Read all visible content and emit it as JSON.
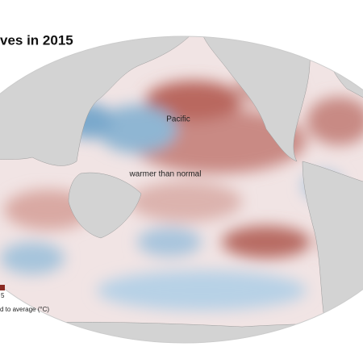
{
  "header": {
    "title": "ves in 2015"
  },
  "map_labels": [
    "Pacific",
    "warmer than normal"
  ],
  "legend": {
    "tick": "5",
    "caption": "d to average (°C)"
  }
}
